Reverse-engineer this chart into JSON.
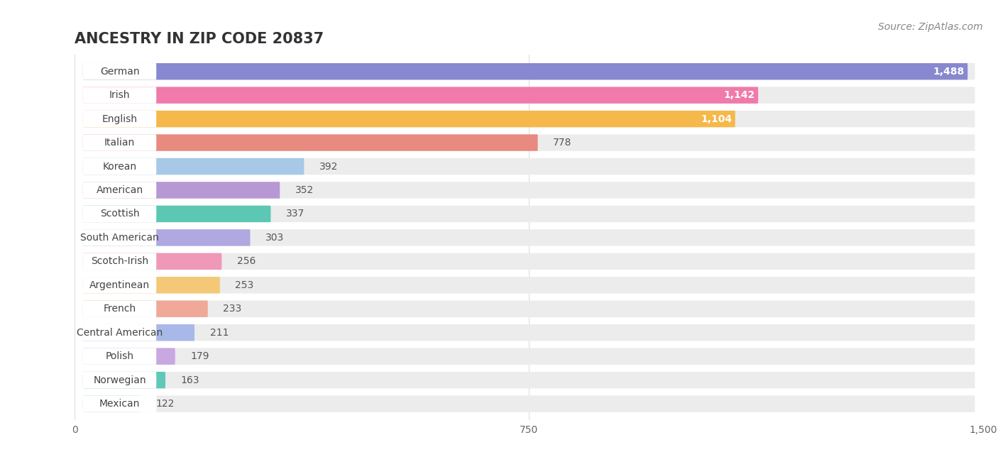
{
  "title": "ANCESTRY IN ZIP CODE 20837",
  "source": "Source: ZipAtlas.com",
  "categories": [
    "German",
    "Irish",
    "English",
    "Italian",
    "Korean",
    "American",
    "Scottish",
    "South American",
    "Scotch-Irish",
    "Argentinean",
    "French",
    "Central American",
    "Polish",
    "Norwegian",
    "Mexican"
  ],
  "values": [
    1488,
    1142,
    1104,
    778,
    392,
    352,
    337,
    303,
    256,
    253,
    233,
    211,
    179,
    163,
    122
  ],
  "colors": [
    "#8888d0",
    "#f07aaa",
    "#f5b84a",
    "#e88a80",
    "#a8c8e8",
    "#b898d4",
    "#5cc8b4",
    "#b0a8e0",
    "#f098b8",
    "#f5c878",
    "#f0a898",
    "#a8b8e8",
    "#c8a8e0",
    "#60c8b8",
    "#a8b4e8"
  ],
  "xlim": [
    0,
    1500
  ],
  "xticks": [
    0,
    750,
    1500
  ],
  "background_color": "#ffffff",
  "row_bg_color": "#f0f0f5",
  "label_bg_color": "#ffffff",
  "title_fontsize": 15,
  "source_fontsize": 10,
  "label_fontsize": 10,
  "value_fontsize": 10,
  "value_inside_threshold": 1104,
  "value_inside_color": "#ffffff",
  "value_outside_color": "#555555"
}
